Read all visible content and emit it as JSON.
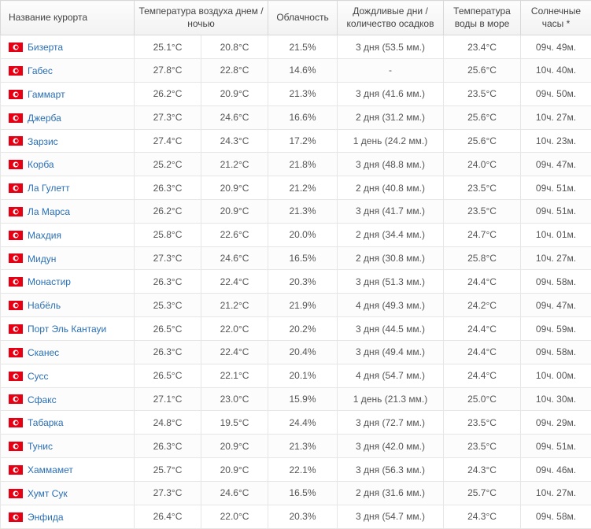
{
  "table": {
    "headers": {
      "name": "Название курорта",
      "temp": "Температура воздуха днем / ночью",
      "cloud": "Облачность",
      "rain": "Дождливые дни / количество осадков",
      "sea": "Температура воды в море",
      "sun": "Солнечные часы *"
    },
    "rows": [
      {
        "name": "Бизерта",
        "tday": "25.1°C",
        "tnight": "20.8°C",
        "cloud": "21.5%",
        "rain": "3 дня (53.5 мм.)",
        "sea": "23.4°C",
        "sun": "09ч. 49м."
      },
      {
        "name": "Габес",
        "tday": "27.8°C",
        "tnight": "22.8°C",
        "cloud": "14.6%",
        "rain": "-",
        "sea": "25.6°C",
        "sun": "10ч. 40м."
      },
      {
        "name": "Гаммарт",
        "tday": "26.2°C",
        "tnight": "20.9°C",
        "cloud": "21.3%",
        "rain": "3 дня (41.6 мм.)",
        "sea": "23.5°C",
        "sun": "09ч. 50м."
      },
      {
        "name": "Джерба",
        "tday": "27.3°C",
        "tnight": "24.6°C",
        "cloud": "16.6%",
        "rain": "2 дня (31.2 мм.)",
        "sea": "25.6°C",
        "sun": "10ч. 27м."
      },
      {
        "name": "Зарзис",
        "tday": "27.4°C",
        "tnight": "24.3°C",
        "cloud": "17.2%",
        "rain": "1 день (24.2 мм.)",
        "sea": "25.6°C",
        "sun": "10ч. 23м."
      },
      {
        "name": "Корба",
        "tday": "25.2°C",
        "tnight": "21.2°C",
        "cloud": "21.8%",
        "rain": "3 дня (48.8 мм.)",
        "sea": "24.0°C",
        "sun": "09ч. 47м."
      },
      {
        "name": "Ла Гулетт",
        "tday": "26.3°C",
        "tnight": "20.9°C",
        "cloud": "21.2%",
        "rain": "2 дня (40.8 мм.)",
        "sea": "23.5°C",
        "sun": "09ч. 51м."
      },
      {
        "name": "Ла Марса",
        "tday": "26.2°C",
        "tnight": "20.9°C",
        "cloud": "21.3%",
        "rain": "3 дня (41.7 мм.)",
        "sea": "23.5°C",
        "sun": "09ч. 51м."
      },
      {
        "name": "Махдия",
        "tday": "25.8°C",
        "tnight": "22.6°C",
        "cloud": "20.0%",
        "rain": "2 дня (34.4 мм.)",
        "sea": "24.7°C",
        "sun": "10ч. 01м."
      },
      {
        "name": "Мидун",
        "tday": "27.3°C",
        "tnight": "24.6°C",
        "cloud": "16.5%",
        "rain": "2 дня (30.8 мм.)",
        "sea": "25.8°C",
        "sun": "10ч. 27м."
      },
      {
        "name": "Монастир",
        "tday": "26.3°C",
        "tnight": "22.4°C",
        "cloud": "20.3%",
        "rain": "3 дня (51.3 мм.)",
        "sea": "24.4°C",
        "sun": "09ч. 58м."
      },
      {
        "name": "Набёль",
        "tday": "25.3°C",
        "tnight": "21.2°C",
        "cloud": "21.9%",
        "rain": "4 дня (49.3 мм.)",
        "sea": "24.2°C",
        "sun": "09ч. 47м."
      },
      {
        "name": "Порт Эль Кантауи",
        "tday": "26.5°C",
        "tnight": "22.0°C",
        "cloud": "20.2%",
        "rain": "3 дня (44.5 мм.)",
        "sea": "24.4°C",
        "sun": "09ч. 59м."
      },
      {
        "name": "Сканес",
        "tday": "26.3°C",
        "tnight": "22.4°C",
        "cloud": "20.4%",
        "rain": "3 дня (49.4 мм.)",
        "sea": "24.4°C",
        "sun": "09ч. 58м."
      },
      {
        "name": "Сусс",
        "tday": "26.5°C",
        "tnight": "22.1°C",
        "cloud": "20.1%",
        "rain": "4 дня (54.7 мм.)",
        "sea": "24.4°C",
        "sun": "10ч. 00м."
      },
      {
        "name": "Сфакс",
        "tday": "27.1°C",
        "tnight": "23.0°C",
        "cloud": "15.9%",
        "rain": "1 день (21.3 мм.)",
        "sea": "25.0°C",
        "sun": "10ч. 30м."
      },
      {
        "name": "Табарка",
        "tday": "24.8°C",
        "tnight": "19.5°C",
        "cloud": "24.4%",
        "rain": "3 дня (72.7 мм.)",
        "sea": "23.5°C",
        "sun": "09ч. 29м."
      },
      {
        "name": "Тунис",
        "tday": "26.3°C",
        "tnight": "20.9°C",
        "cloud": "21.3%",
        "rain": "3 дня (42.0 мм.)",
        "sea": "23.5°C",
        "sun": "09ч. 51м."
      },
      {
        "name": "Хаммамет",
        "tday": "25.7°C",
        "tnight": "20.9°C",
        "cloud": "22.1%",
        "rain": "3 дня (56.3 мм.)",
        "sea": "24.3°C",
        "sun": "09ч. 46м."
      },
      {
        "name": "Хумт Сук",
        "tday": "27.3°C",
        "tnight": "24.6°C",
        "cloud": "16.5%",
        "rain": "2 дня (31.6 мм.)",
        "sea": "25.7°C",
        "sun": "10ч. 27м."
      },
      {
        "name": "Энфида",
        "tday": "26.4°C",
        "tnight": "22.0°C",
        "cloud": "20.3%",
        "rain": "3 дня (54.7 мм.)",
        "sea": "24.3°C",
        "sun": "09ч. 58м."
      }
    ]
  }
}
